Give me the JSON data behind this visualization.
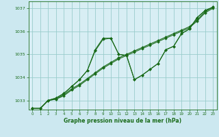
{
  "xlabel": "Graphe pression niveau de la mer (hPa)",
  "background_color": "#cce8f0",
  "plot_bg_color": "#d8eef4",
  "grid_color": "#99cccc",
  "line_color": "#1a6b1a",
  "text_color": "#1a6b1a",
  "ylim": [
    1032.6,
    1037.3
  ],
  "xlim": [
    -0.5,
    23.5
  ],
  "yticks": [
    1033,
    1034,
    1035,
    1036,
    1037
  ],
  "xticks": [
    0,
    1,
    2,
    3,
    4,
    5,
    6,
    7,
    8,
    9,
    10,
    11,
    12,
    13,
    14,
    15,
    16,
    17,
    18,
    19,
    20,
    21,
    22,
    23
  ],
  "series": [
    [
      1032.65,
      1032.65,
      1033.0,
      1033.05,
      1033.25,
      1033.5,
      1033.7,
      1033.95,
      1034.2,
      1034.45,
      1034.65,
      1034.85,
      1035.0,
      1035.15,
      1035.3,
      1035.45,
      1035.6,
      1035.75,
      1035.9,
      1036.05,
      1036.2,
      1036.5,
      1036.85,
      1037.05
    ],
    [
      1032.65,
      1032.65,
      1033.0,
      1033.05,
      1033.2,
      1033.45,
      1033.65,
      1033.9,
      1034.15,
      1034.4,
      1034.6,
      1034.8,
      1034.95,
      1035.1,
      1035.25,
      1035.4,
      1035.55,
      1035.7,
      1035.85,
      1036.0,
      1036.15,
      1036.45,
      1036.8,
      1037.0
    ],
    [
      1032.65,
      1032.65,
      1033.0,
      1033.1,
      1033.3,
      1033.6,
      1033.9,
      1034.3,
      1035.15,
      1035.65,
      1035.7,
      1035.0,
      1034.95,
      1033.9,
      1034.1,
      1034.35,
      1034.6,
      1035.2,
      1035.35,
      1035.9,
      1036.1,
      1036.6,
      1036.9,
      1037.05
    ],
    [
      1032.65,
      1032.65,
      1033.0,
      1033.1,
      1033.3,
      1033.6,
      1033.9,
      1034.3,
      1035.2,
      1035.7,
      1035.7,
      1035.0,
      1034.95,
      1033.9,
      1034.1,
      1034.35,
      1034.6,
      1035.2,
      1035.35,
      1035.9,
      1036.1,
      1036.6,
      1036.9,
      1037.05
    ]
  ]
}
